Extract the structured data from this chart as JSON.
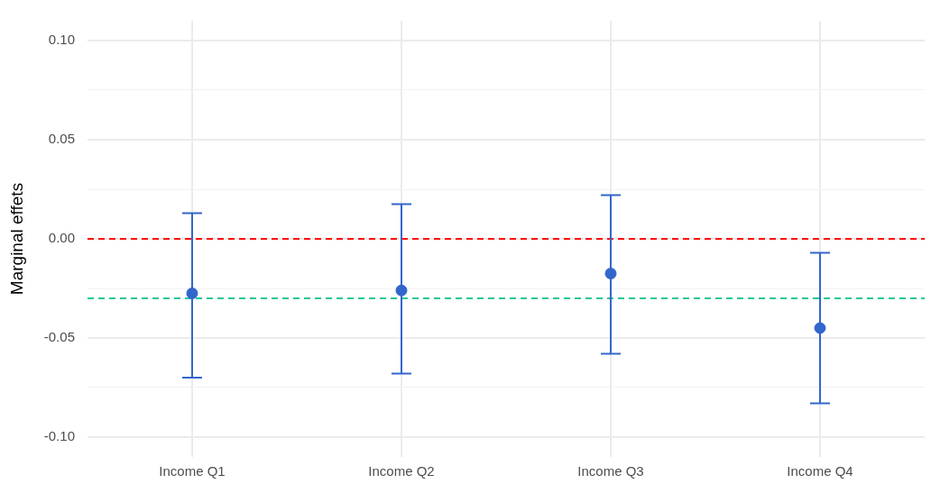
{
  "chart_data": {
    "type": "scatter",
    "ylabel": "Marginal effets",
    "categories": [
      "Income Q1",
      "Income Q2",
      "Income Q3",
      "Income Q4"
    ],
    "series": [
      {
        "color": "#3366cc",
        "values": [
          -0.0275,
          -0.026,
          -0.0175,
          -0.045
        ],
        "errors": [
          [
            -0.07,
            0.013
          ],
          [
            -0.068,
            0.0175
          ],
          [
            -0.058,
            0.022
          ],
          [
            -0.083,
            -0.007
          ]
        ]
      }
    ],
    "ylim": [
      -0.11,
      0.11
    ],
    "yticks": [
      {
        "value": -0.1,
        "label": "-0.10"
      },
      {
        "value": -0.075,
        "label": null
      },
      {
        "value": -0.05,
        "label": "-0.05"
      },
      {
        "value": -0.025,
        "label": null
      },
      {
        "value": 0,
        "label": "0.00"
      },
      {
        "value": 0.025,
        "label": null
      },
      {
        "value": 0.05,
        "label": "0.05"
      },
      {
        "value": 0.075,
        "label": null
      },
      {
        "value": 0.1,
        "label": "0.10"
      }
    ],
    "ref_lines": [
      {
        "axis": "y",
        "value": 0,
        "color": "#ff0000",
        "line_style": "dashed"
      },
      {
        "axis": "y",
        "value": -0.03,
        "color": "#20c997",
        "line_style": "dashed"
      }
    ],
    "grid": true,
    "marker": "circle",
    "legend": false
  }
}
